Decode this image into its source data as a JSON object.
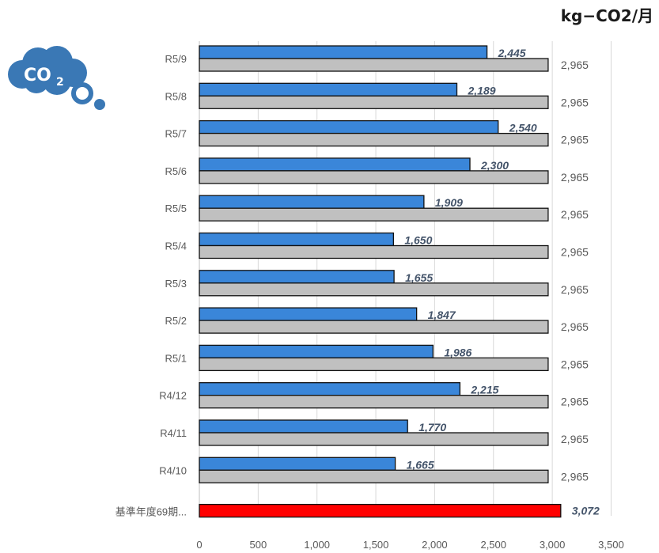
{
  "unit_label": "kg−CO2/月",
  "logo": {
    "icon": "co2-cloud-icon",
    "text": "CO2",
    "color": "#3a78b5"
  },
  "chart_data": {
    "type": "bar",
    "orientation": "horizontal",
    "categories": [
      "R5/9",
      "R5/8",
      "R5/7",
      "R5/6",
      "R5/5",
      "R5/4",
      "R5/3",
      "R5/2",
      "R5/1",
      "R4/12",
      "R4/11",
      "R4/10",
      "基準年度69期..."
    ],
    "series": [
      {
        "values": [
          2445,
          2189,
          2540,
          2300,
          1909,
          1650,
          1655,
          1847,
          1986,
          2215,
          1770,
          1665,
          null
        ],
        "color": "#3a86d9",
        "label_style": "bold-italic"
      },
      {
        "values": [
          2965,
          2965,
          2965,
          2965,
          2965,
          2965,
          2965,
          2965,
          2965,
          2965,
          2965,
          2965,
          null
        ],
        "color": "#c0c0c0",
        "label_style": "normal"
      },
      {
        "values": [
          null,
          null,
          null,
          null,
          null,
          null,
          null,
          null,
          null,
          null,
          null,
          null,
          3072
        ],
        "color": "#ff0000",
        "label_style": "bold-italic"
      }
    ],
    "xlim": [
      0,
      3500
    ],
    "xticks": [
      0,
      500,
      1000,
      1500,
      2000,
      2500,
      3000,
      3500
    ],
    "xtick_labels": [
      "0",
      "500",
      "1,000",
      "1,500",
      "2,000",
      "2,500",
      "3,000",
      "3,500"
    ],
    "grid": "vertical",
    "legend": "none"
  }
}
